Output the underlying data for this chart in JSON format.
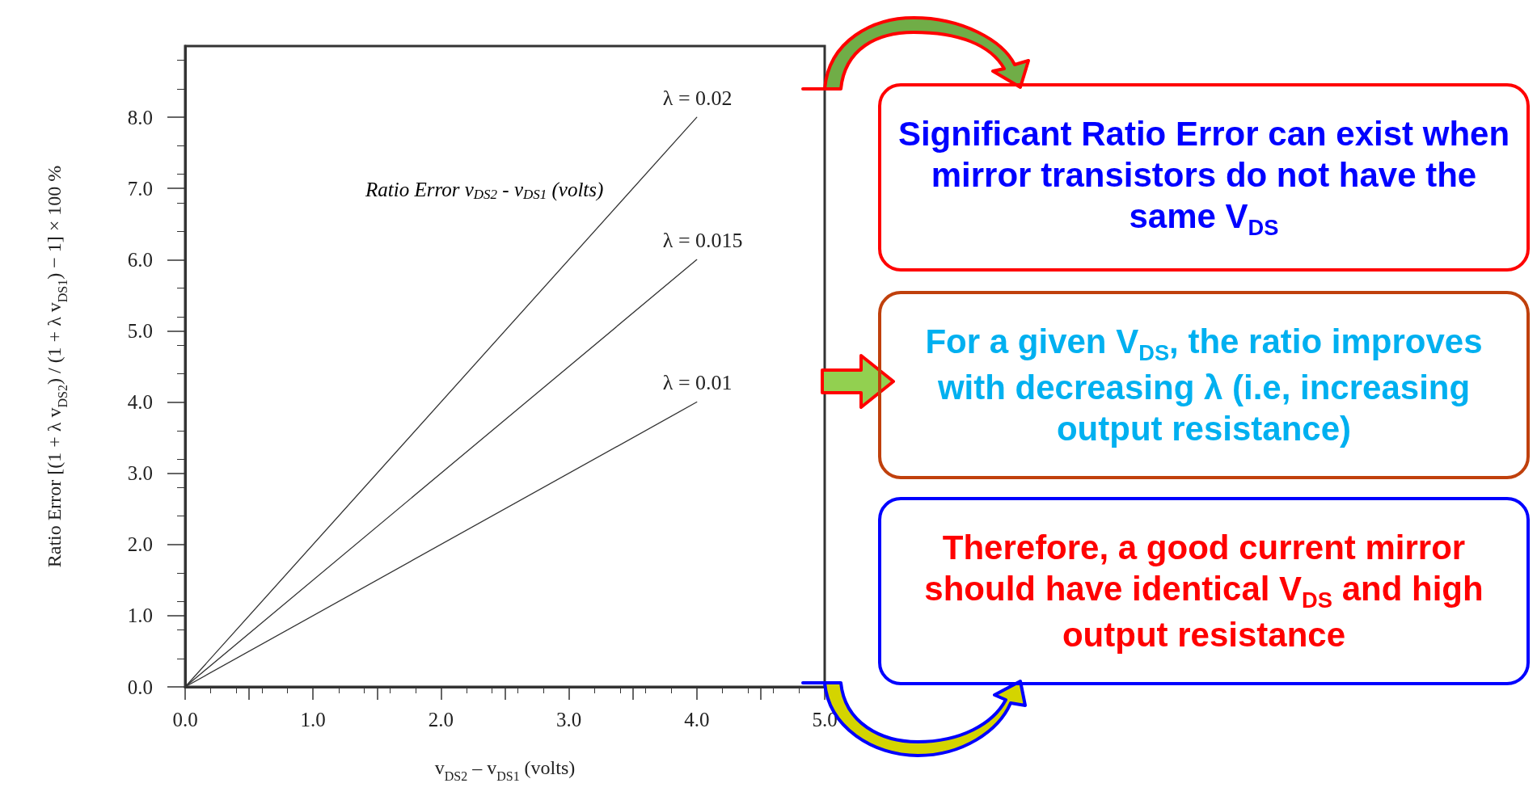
{
  "chart_data": {
    "type": "line",
    "xlabel": "v$_{DS2}$ – v$_{DS1}$ (volts)",
    "ylabel": "Ratio Error [(1 + λ v$_{DS2}$) / (1 + λ v$_{DS1}$) − 1] × 100 %",
    "x": [
      0,
      4
    ],
    "series": [
      {
        "name": "λ = 0.02",
        "color": "#333333",
        "values": [
          0,
          8
        ]
      },
      {
        "name": "λ = 0.015",
        "color": "#333333",
        "values": [
          0,
          6
        ]
      },
      {
        "name": "λ = 0.01",
        "color": "#333333",
        "values": [
          0,
          4
        ]
      }
    ],
    "xlim": [
      0,
      5
    ],
    "xticks": [
      {
        "value": 0,
        "label": "0.0"
      },
      {
        "value": 0.5,
        "label": null
      },
      {
        "value": 1,
        "label": "1.0"
      },
      {
        "value": 1.5,
        "label": null
      },
      {
        "value": 2,
        "label": "2.0"
      },
      {
        "value": 2.5,
        "label": null
      },
      {
        "value": 3,
        "label": "3.0"
      },
      {
        "value": 3.5,
        "label": null
      },
      {
        "value": 4,
        "label": "4.0"
      },
      {
        "value": 4.5,
        "label": null
      },
      {
        "value": 5,
        "label": "5.0"
      }
    ],
    "ylim": [
      0,
      9
    ],
    "yticks": [
      {
        "value": 0,
        "label": "0.0"
      },
      {
        "value": 1,
        "label": "1.0"
      },
      {
        "value": 2,
        "label": "2.0"
      },
      {
        "value": 3,
        "label": "3.0"
      },
      {
        "value": 4,
        "label": "4.0"
      },
      {
        "value": 5,
        "label": "5.0"
      },
      {
        "value": 6,
        "label": "6.0"
      },
      {
        "value": 7,
        "label": "7.0"
      },
      {
        "value": 8,
        "label": "8.0"
      }
    ],
    "grid": false,
    "legend": false,
    "marker": "none",
    "line_style": "solid",
    "annotations": [
      "Ratio Error v$_{DS2}$ - v$_{DS1}$ (volts)",
      "Significant Ratio Error can exist when mirror transistors do not have the same V$_{DS}$",
      "For a given V$_{DS}$, the ratio improves with decreasing λ (i.e, increasing output resistance)",
      "Therefore, a good current mirror should have identical V$_{DS}$ and high output resistance"
    ]
  }
}
